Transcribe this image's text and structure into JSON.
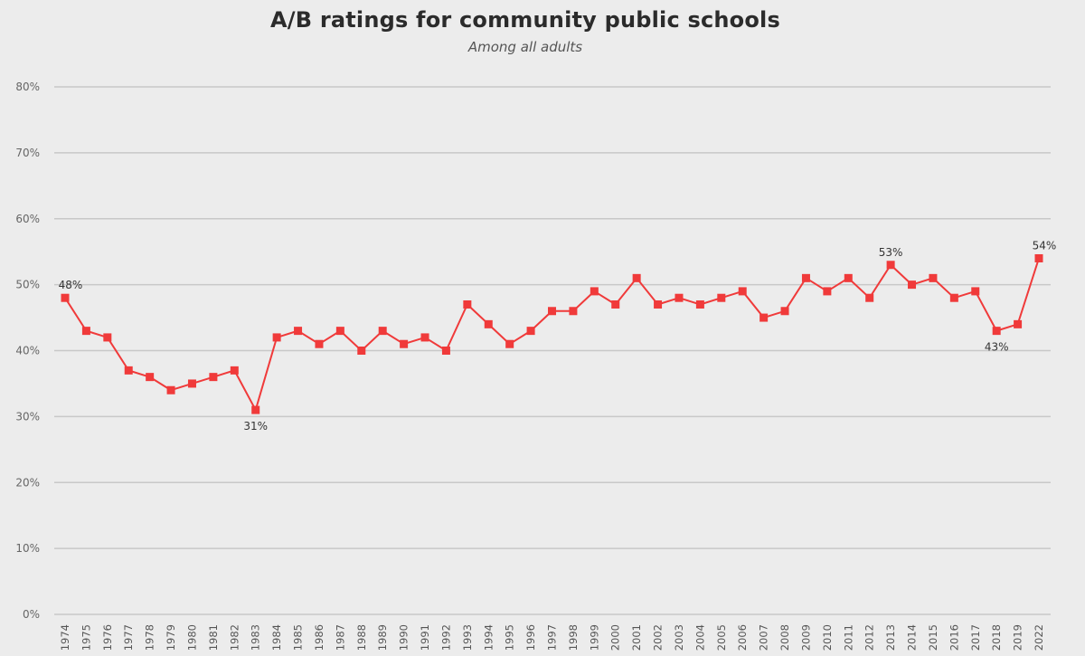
{
  "chart_data": {
    "type": "line",
    "title": "A/B ratings for community public schools",
    "subtitle": "Among all adults",
    "xlabel": "",
    "ylabel": "",
    "ylim": [
      0,
      80
    ],
    "y_ticks": [
      "0%",
      "10%",
      "20%",
      "30%",
      "40%",
      "50%",
      "60%",
      "70%",
      "80%"
    ],
    "y_tick_values": [
      0,
      10,
      20,
      30,
      40,
      50,
      60,
      70,
      80
    ],
    "grid": true,
    "line_color": "#f03a3a",
    "grid_color": "#c8c8c8",
    "categories": [
      "1974",
      "1975",
      "1976",
      "1977",
      "1978",
      "1979",
      "1980",
      "1981",
      "1982",
      "1983",
      "1984",
      "1985",
      "1986",
      "1987",
      "1988",
      "1989",
      "1990",
      "1991",
      "1992",
      "1993",
      "1994",
      "1995",
      "1996",
      "1997",
      "1998",
      "1999",
      "2000",
      "2001",
      "2002",
      "2003",
      "2004",
      "2005",
      "2006",
      "2007",
      "2008",
      "2009",
      "2010",
      "2011",
      "2012",
      "2013",
      "2014",
      "2015",
      "2016",
      "2017",
      "2018",
      "2019",
      "2022"
    ],
    "series": [
      {
        "values": [
          48,
          43,
          42,
          37,
          36,
          34,
          35,
          36,
          37,
          31,
          42,
          43,
          41,
          43,
          40,
          43,
          41,
          42,
          40,
          47,
          44,
          41,
          43,
          46,
          46,
          49,
          47,
          51,
          47,
          48,
          47,
          48,
          49,
          45,
          46,
          51,
          49,
          51,
          48,
          53,
          50,
          51,
          48,
          49,
          43,
          44,
          54
        ]
      }
    ],
    "annotations": [
      {
        "category": "1974",
        "text": "48%",
        "position": "above"
      },
      {
        "category": "1983",
        "text": "31%",
        "position": "below"
      },
      {
        "category": "2013",
        "text": "53%",
        "position": "above"
      },
      {
        "category": "2018",
        "text": "43%",
        "position": "below"
      },
      {
        "category": "2022",
        "text": "54%",
        "position": "above"
      }
    ]
  }
}
